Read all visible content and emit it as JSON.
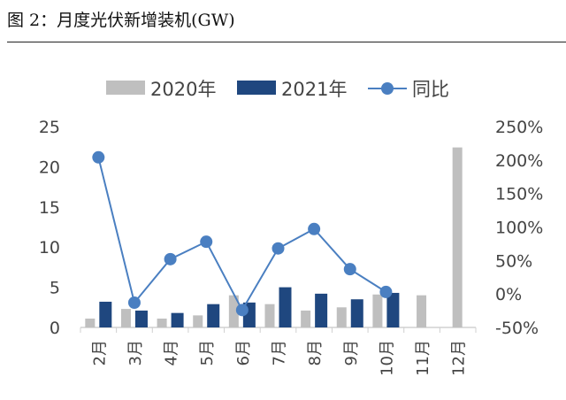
{
  "title": "图 2：月度光伏新增装机(GW)",
  "chart_data": {
    "type": "bar+line",
    "title": "图 2：月度光伏新增装机(GW)",
    "categories": [
      "2月",
      "3月",
      "4月",
      "5月",
      "6月",
      "7月",
      "8月",
      "9月",
      "10月",
      "11月",
      "12月"
    ],
    "series": [
      {
        "name": "2020年",
        "type": "bar",
        "axis": "left",
        "color": "#bfbfbf",
        "values": [
          1.1,
          2.3,
          1.1,
          1.5,
          4.0,
          2.9,
          2.1,
          2.5,
          4.1,
          4.0,
          22.4
        ]
      },
      {
        "name": "2021年",
        "type": "bar",
        "axis": "left",
        "color": "#1f477f",
        "values": [
          3.2,
          2.1,
          1.8,
          2.9,
          3.1,
          5.0,
          4.2,
          3.5,
          4.3,
          null,
          null
        ]
      },
      {
        "name": "同比",
        "type": "line",
        "axis": "right",
        "color": "#4a7fc1",
        "values": [
          204,
          -13,
          52,
          78,
          -24,
          68,
          97,
          37,
          3,
          null,
          null
        ]
      }
    ],
    "ylim": [
      0,
      25
    ],
    "yticks": [
      "0",
      "5",
      "10",
      "15",
      "20",
      "25"
    ],
    "y2lim": [
      -50,
      250
    ],
    "y2ticks": [
      "-50%",
      "0%",
      "50%",
      "100%",
      "150%",
      "200%",
      "250%"
    ],
    "legend": "top",
    "grid": false
  }
}
